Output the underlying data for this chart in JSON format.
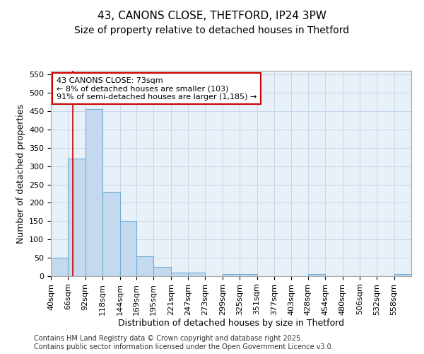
{
  "title_line1": "43, CANONS CLOSE, THETFORD, IP24 3PW",
  "title_line2": "Size of property relative to detached houses in Thetford",
  "xlabel": "Distribution of detached houses by size in Thetford",
  "ylabel": "Number of detached properties",
  "bin_labels": [
    "40sqm",
    "66sqm",
    "92sqm",
    "118sqm",
    "144sqm",
    "169sqm",
    "195sqm",
    "221sqm",
    "247sqm",
    "273sqm",
    "299sqm",
    "325sqm",
    "351sqm",
    "377sqm",
    "403sqm",
    "428sqm",
    "454sqm",
    "480sqm",
    "506sqm",
    "532sqm",
    "558sqm"
  ],
  "bin_edges": [
    40,
    66,
    92,
    118,
    144,
    169,
    195,
    221,
    247,
    273,
    299,
    325,
    351,
    377,
    403,
    428,
    454,
    480,
    506,
    532,
    558,
    584
  ],
  "bar_heights": [
    50,
    320,
    455,
    230,
    150,
    55,
    25,
    10,
    10,
    0,
    5,
    5,
    0,
    0,
    0,
    5,
    0,
    0,
    0,
    0,
    5
  ],
  "bar_color": "#c5d9ee",
  "bar_edge_color": "#6baed6",
  "property_size": 73,
  "red_line_color": "#cc0000",
  "annotation_line1": "43 CANONS CLOSE: 73sqm",
  "annotation_line2": "← 8% of detached houses are smaller (103)",
  "annotation_line3": "91% of semi-detached houses are larger (1,185) →",
  "annotation_box_color": "#ffffff",
  "annotation_box_edge": "#cc0000",
  "ylim": [
    0,
    560
  ],
  "yticks": [
    0,
    50,
    100,
    150,
    200,
    250,
    300,
    350,
    400,
    450,
    500,
    550
  ],
  "grid_color": "#c8d8ec",
  "bg_color": "#e8f0f8",
  "fig_bg_color": "#ffffff",
  "footer_text": "Contains HM Land Registry data © Crown copyright and database right 2025.\nContains public sector information licensed under the Open Government Licence v3.0.",
  "title_fontsize": 11,
  "subtitle_fontsize": 10,
  "axis_label_fontsize": 9,
  "tick_fontsize": 8,
  "annotation_fontsize": 8,
  "footer_fontsize": 7
}
